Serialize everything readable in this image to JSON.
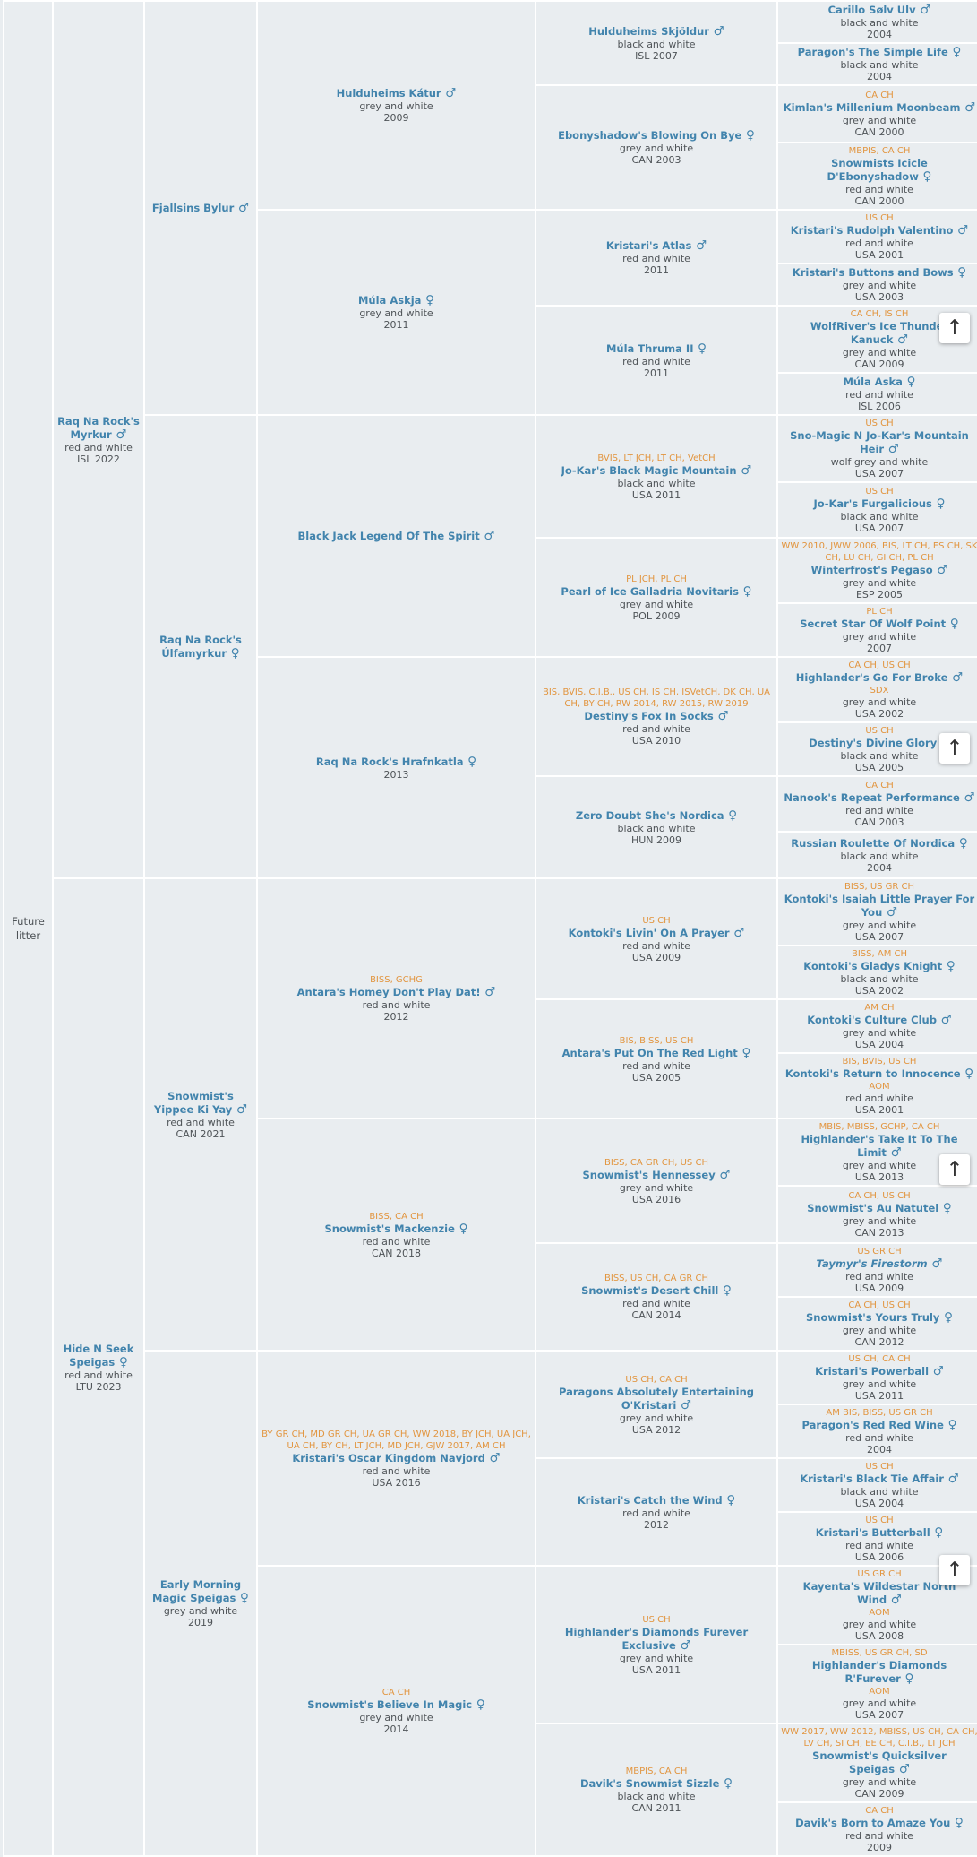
{
  "theme": {
    "background": "#e9edf0",
    "grid_border": "#ffffff",
    "name_link_color": "#4284ad",
    "awards_color": "#e2953f",
    "text_color": "#4e5357",
    "button_background": "#ffffff",
    "button_arrow_color": "#333333"
  },
  "scroll_button": {
    "icon": "up-arrow",
    "symbol": "↑"
  },
  "sex_icons": {
    "male": "♂",
    "female": "♀"
  },
  "pedigree": {
    "columns": [
      {
        "id": "future-litter",
        "cells": [
          {
            "span": 32,
            "label": "Future litter"
          }
        ]
      },
      {
        "id": "parents",
        "cells": [
          {
            "span": 16,
            "name": "Raq Na Rock's Myrkur",
            "sex": "male",
            "color": "red and white",
            "year": "ISL 2022"
          },
          {
            "span": 16,
            "name": "Hide N Seek Speigas",
            "sex": "female",
            "color": "red and white",
            "year": "LTU 2023"
          }
        ]
      },
      {
        "id": "grandparents",
        "cells": [
          {
            "span": 8,
            "name": "Fjallsins Bylur",
            "sex": "male"
          },
          {
            "span": 8,
            "name": "Raq Na Rock's Úlfamyrkur",
            "sex": "female"
          },
          {
            "span": 8,
            "name": "Snowmist's Yippee Ki Yay",
            "sex": "male",
            "color": "red and white",
            "year": "CAN 2021"
          },
          {
            "span": 8,
            "name": "Early Morning Magic Speigas",
            "sex": "female",
            "color": "grey and white",
            "year": "2019"
          }
        ]
      },
      {
        "id": "great-grandparents",
        "cells": [
          {
            "span": 4,
            "name": "Hulduheims Kátur",
            "sex": "male",
            "color": "grey and white",
            "year": "2009"
          },
          {
            "span": 4,
            "name": "Múla Askja",
            "sex": "female",
            "color": "grey and white",
            "year": "2011"
          },
          {
            "span": 4,
            "name": "Black Jack Legend Of The Spirit",
            "sex": "male"
          },
          {
            "span": 4,
            "name": "Raq Na Rock's Hrafnkatla",
            "sex": "female",
            "year": "2013"
          },
          {
            "span": 4,
            "awards": "BISS, GCHG",
            "name": "Antara's Homey Don't Play Dat!",
            "sex": "male",
            "color": "red and white",
            "year": "2012"
          },
          {
            "span": 4,
            "awards": "BISS, CA CH",
            "name": "Snowmist's Mackenzie",
            "sex": "female",
            "color": "red and white",
            "year": "CAN 2018"
          },
          {
            "span": 4,
            "awards": "BY GR CH, MD GR CH, UA GR CH, WW 2018, BY JCH, UA JCH, UA CH, BY CH, LT JCH, MD JCH, GJW 2017, AM CH",
            "name": "Kristari's Oscar Kingdom Navjord",
            "sex": "male",
            "color": "red and white",
            "year": "USA 2016"
          },
          {
            "span": 4,
            "awards": "CA CH",
            "name": "Snowmist's Believe In Magic",
            "sex": "female",
            "color": "grey and white",
            "year": "2014"
          }
        ]
      },
      {
        "id": "generation-5",
        "cells": [
          {
            "span": 2,
            "name": "Hulduheims Skjöldur",
            "sex": "male",
            "color": "black and white",
            "year": "ISL 2007"
          },
          {
            "span": 2,
            "name": "Ebonyshadow's Blowing On Bye",
            "sex": "female",
            "color": "grey and white",
            "year": "CAN 2003"
          },
          {
            "span": 2,
            "name": "Kristari's Atlas",
            "sex": "male",
            "color": "red and white",
            "year": "2011"
          },
          {
            "span": 2,
            "name": "Múla Thruma II",
            "sex": "female",
            "color": "red and white",
            "year": "2011"
          },
          {
            "span": 2,
            "awards": "BVIS, LT JCH, LT CH, VetCH",
            "name": "Jo-Kar's Black Magic Mountain",
            "sex": "male",
            "color": "black and white",
            "year": "USA 2011"
          },
          {
            "span": 2,
            "awards": "PL JCH, PL CH",
            "name": "Pearl of Ice Galladria Novitaris",
            "sex": "female",
            "color": "grey and white",
            "year": "POL 2009"
          },
          {
            "span": 2,
            "awards": "BIS, BVIS, C.I.B., US CH, IS CH, ISVetCH, DK CH, UA CH, BY CH, RW 2014, RW 2015, RW 2019",
            "name": "Destiny's Fox In Socks",
            "sex": "male",
            "color": "red and white",
            "year": "USA 2010"
          },
          {
            "span": 2,
            "name": "Zero Doubt She's Nordica",
            "sex": "female",
            "color": "black and white",
            "year": "HUN 2009"
          },
          {
            "span": 2,
            "awards": "US CH",
            "name": "Kontoki's Livin' On A Prayer",
            "sex": "male",
            "color": "red and white",
            "year": "USA 2009"
          },
          {
            "span": 2,
            "awards": "BIS, BISS, US CH",
            "name": "Antara's Put On The Red Light",
            "sex": "female",
            "color": "red and white",
            "year": "USA 2005"
          },
          {
            "span": 2,
            "awards": "BISS, CA GR CH, US CH",
            "name": "Snowmist's Hennessey",
            "sex": "male",
            "color": "grey and white",
            "year": "USA 2016"
          },
          {
            "span": 2,
            "awards": "BISS, US CH, CA GR CH",
            "name": "Snowmist's Desert Chill",
            "sex": "female",
            "color": "red and white",
            "year": "CAN 2014"
          },
          {
            "span": 2,
            "awards": "US CH, CA CH",
            "name": "Paragons Absolutely Entertaining O'Kristari",
            "sex": "male",
            "color": "grey and white",
            "year": "USA 2012"
          },
          {
            "span": 2,
            "name": "Kristari's Catch the Wind",
            "sex": "female",
            "color": "red and white",
            "year": "2012"
          },
          {
            "span": 2,
            "awards": "US CH",
            "name": "Highlander's Diamonds Furever Exclusive",
            "sex": "male",
            "color": "grey and white",
            "year": "USA 2011"
          },
          {
            "span": 2,
            "awards": "MBPIS, CA CH",
            "name": "Davik's Snowmist Sizzle",
            "sex": "female",
            "color": "black and white",
            "year": "CAN 2011"
          }
        ]
      },
      {
        "id": "generation-6",
        "cells": [
          {
            "span": 1,
            "name": "Carillo Sølv Ulv",
            "sex": "male",
            "color": "black and white",
            "year": "2004"
          },
          {
            "span": 1,
            "name": "Paragon's The Simple Life",
            "sex": "female",
            "color": "black and white",
            "year": "2004"
          },
          {
            "span": 1,
            "awards": "CA CH",
            "name": "Kimlan's Millenium Moonbeam",
            "sex": "male",
            "color": "grey and white",
            "year": "CAN 2000"
          },
          {
            "span": 1,
            "awards": "MBPIS, CA CH",
            "name": "Snowmists Icicle D'Ebonyshadow",
            "sex": "female",
            "color": "red and white",
            "year": "CAN 2000"
          },
          {
            "span": 1,
            "awards": "US CH",
            "name": "Kristari's Rudolph Valentino",
            "sex": "male",
            "color": "red and white",
            "year": "USA 2001"
          },
          {
            "span": 1,
            "name": "Kristari's Buttons and Bows",
            "sex": "female",
            "color": "grey and white",
            "year": "USA 2003"
          },
          {
            "span": 1,
            "awards": "CA CH, IS CH",
            "name": "WolfRiver's Ice Thunder Kanuck",
            "sex": "male",
            "color": "grey and white",
            "year": "CAN 2009"
          },
          {
            "span": 1,
            "name": "Múla Aska",
            "sex": "female",
            "color": "red and white",
            "year": "ISL 2006"
          },
          {
            "span": 1,
            "awards": "US CH",
            "name": "Sno-Magic N Jo-Kar's Mountain Heir",
            "sex": "male",
            "color": "wolf grey and white",
            "year": "USA 2007"
          },
          {
            "span": 1,
            "awards": "US CH",
            "name": "Jo-Kar's Furgalicious",
            "sex": "female",
            "color": "black and white",
            "year": "USA 2007"
          },
          {
            "span": 1,
            "awards": "WW 2010, JWW 2006, BIS, LT CH, ES CH, SK CH, LU CH, GI CH, PL CH",
            "name": "Winterfrost's Pegaso",
            "sex": "male",
            "color": "grey and white",
            "year": "ESP 2005"
          },
          {
            "span": 1,
            "awards": "PL CH",
            "name": "Secret Star Of Wolf Point",
            "sex": "female",
            "color": "grey and white",
            "year": "2007"
          },
          {
            "span": 1,
            "awards": "CA CH, US CH",
            "name": "Highlander's Go For Broke",
            "sex": "male",
            "awards2": "SDX",
            "color": "grey and white",
            "year": "USA 2002"
          },
          {
            "span": 1,
            "awards": "US CH",
            "name": "Destiny's Divine Glory",
            "sex": "female",
            "color": "black and white",
            "year": "USA 2005"
          },
          {
            "span": 1,
            "awards": "CA CH",
            "name": "Nanook's Repeat Performance",
            "sex": "male",
            "color": "red and white",
            "year": "CAN 2003"
          },
          {
            "span": 1,
            "name": "Russian Roulette Of Nordica",
            "sex": "female",
            "color": "black and white",
            "year": "2004"
          },
          {
            "span": 1,
            "awards": "BISS, US GR CH",
            "name": "Kontoki's Isaiah Little Prayer For You",
            "sex": "male",
            "color": "grey and white",
            "year": "USA 2007"
          },
          {
            "span": 1,
            "awards": "BISS, AM CH",
            "name": "Kontoki's Gladys Knight",
            "sex": "female",
            "color": "black and white",
            "year": "USA 2002"
          },
          {
            "span": 1,
            "awards": "AM CH",
            "name": "Kontoki's Culture Club",
            "sex": "male",
            "color": "grey and white",
            "year": "USA 2004"
          },
          {
            "span": 1,
            "awards": "BIS, BVIS, US CH",
            "name": "Kontoki's Return to Innocence",
            "sex": "female",
            "awards2": "AOM",
            "color": "red and white",
            "year": "USA 2001"
          },
          {
            "span": 1,
            "awards": "MBIS, MBISS, GCHP, CA CH",
            "name": "Highlander's Take It To The Limit",
            "sex": "male",
            "color": "grey and white",
            "year": "USA 2013"
          },
          {
            "span": 1,
            "awards": "CA CH, US CH",
            "name": "Snowmist's Au Natutel",
            "sex": "female",
            "color": "grey and white",
            "year": "CAN 2013"
          },
          {
            "span": 1,
            "awards": "US GR CH",
            "name": "Taymyr's Firestorm",
            "sex": "male",
            "italic": true,
            "color": "red and white",
            "year": "USA 2009"
          },
          {
            "span": 1,
            "awards": "CA CH, US CH",
            "name": "Snowmist's Yours Truly",
            "sex": "female",
            "color": "grey and white",
            "year": "CAN 2012"
          },
          {
            "span": 1,
            "awards": "US CH, CA CH",
            "name": "Kristari's Powerball",
            "sex": "male",
            "color": "grey and white",
            "year": "USA 2011"
          },
          {
            "span": 1,
            "awards": "AM BIS, BISS, US GR CH",
            "name": "Paragon's Red Red Wine",
            "sex": "female",
            "color": "red and white",
            "year": "2004"
          },
          {
            "span": 1,
            "awards": "US CH",
            "name": "Kristari's Black Tie Affair",
            "sex": "male",
            "color": "black and white",
            "year": "USA 2004"
          },
          {
            "span": 1,
            "awards": "US CH",
            "name": "Kristari's Butterball",
            "sex": "female",
            "color": "red and white",
            "year": "USA 2006"
          },
          {
            "span": 1,
            "awards": "US GR CH",
            "name": "Kayenta's Wildestar North Wind",
            "sex": "male",
            "awards2": "AOM",
            "color": "grey and white",
            "year": "USA 2008"
          },
          {
            "span": 1,
            "awards": "MBISS, US GR CH, SD",
            "name": "Highlander's Diamonds R'Furever",
            "sex": "female",
            "awards2": "AOM",
            "color": "grey and white",
            "year": "USA 2007"
          },
          {
            "span": 1,
            "awards": "WW 2017, WW 2012, MBISS, US CH, CA CH, LV CH, SI CH, EE CH, C.I.B., LT JCH",
            "name": "Snowmist's Quicksilver Speigas",
            "sex": "male",
            "color": "grey and white",
            "year": "CAN 2009"
          },
          {
            "span": 1,
            "awards": "CA CH",
            "name": "Davik's Born to Amaze You",
            "sex": "female",
            "color": "red and white",
            "year": "2009"
          }
        ]
      }
    ]
  }
}
